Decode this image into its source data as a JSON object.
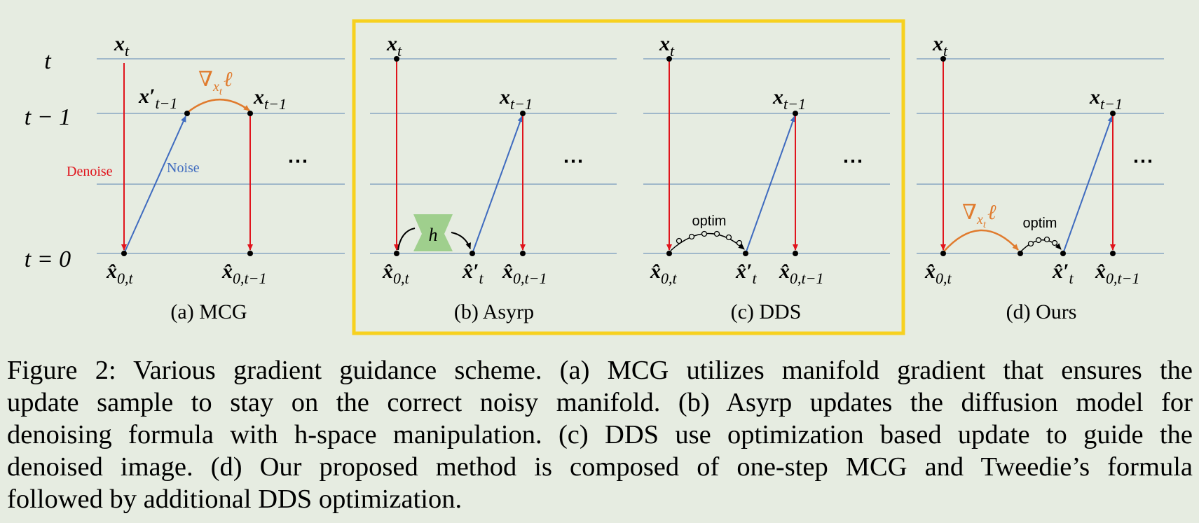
{
  "figure": {
    "y_axis_labels": {
      "t": "t",
      "t_minus_1": "t − 1",
      "t_0": "t = 0"
    },
    "ellipsis": "⋯",
    "colors": {
      "background": "#e6ece1",
      "grid_line": "#5b83b3",
      "denoise_arrow": "#e0141c",
      "noise_arrow": "#3f6bbf",
      "gradient_arrow": "#e07b2e",
      "highlight_box": "#f7d11f",
      "h_block": "#9fcf8d"
    },
    "panels": [
      {
        "id": "a",
        "label": "(a) MCG",
        "x_t": "x",
        "x_t_sub": "t",
        "x_prime": "x′",
        "x_prime_sub": "t−1",
        "x_t1": "x",
        "x_t1_sub": "t−1",
        "hat0t": "x̂",
        "hat0t_sub": "0,t",
        "hat0t1": "x̂",
        "hat0t1_sub": "0,t−1",
        "grad_symbol": "∇",
        "grad_sub": "x",
        "grad_subsub": "t",
        "grad_loss": "ℓ",
        "denoise_label": "Denoise",
        "noise_label": "Noise"
      },
      {
        "id": "b",
        "label": "(b) Asyrp",
        "x_t": "x",
        "x_t_sub": "t",
        "x_t1": "x",
        "x_t1_sub": "t−1",
        "hat0t": "x̂",
        "hat0t_sub": "0,t",
        "hatprime": "x̂′",
        "hatprime_sub": "t",
        "hat0t1": "x̂",
        "hat0t1_sub": "0,t−1",
        "h_label": "h"
      },
      {
        "id": "c",
        "label": "(c) DDS",
        "x_t": "x",
        "x_t_sub": "t",
        "x_t1": "x",
        "x_t1_sub": "t−1",
        "hat0t": "x̂",
        "hat0t_sub": "0,t",
        "hatprime": "x̂′",
        "hatprime_sub": "t",
        "hat0t1": "x̂",
        "hat0t1_sub": "0,t−1",
        "optim_label": "optim"
      },
      {
        "id": "d",
        "label": "(d) Ours",
        "x_t": "x",
        "x_t_sub": "t",
        "x_t1": "x",
        "x_t1_sub": "t−1",
        "hat0t": "x̂",
        "hat0t_sub": "0,t",
        "hatprime": "x̂′",
        "hatprime_sub": "t",
        "hat0t1": "x̂",
        "hat0t1_sub": "0,t−1",
        "grad_symbol": "∇",
        "grad_sub": "x",
        "grad_subsub": "t",
        "grad_loss": "ℓ",
        "optim_label": "optim"
      }
    ]
  },
  "caption": {
    "lines": [
      "Figure 2: Various gradient guidance scheme. (a) MCG utilizes manifold gradient that ensures the",
      "update sample to stay on the correct noisy manifold.  (b) Asyrp updates the diffusion model for",
      "denoising formula with h-space manipulation. (c) DDS use optimization based update to guide the",
      "denoised image. (d) Our proposed method is composed of one-step MCG and Tweedie’s formula",
      "followed by additional DDS optimization."
    ]
  }
}
